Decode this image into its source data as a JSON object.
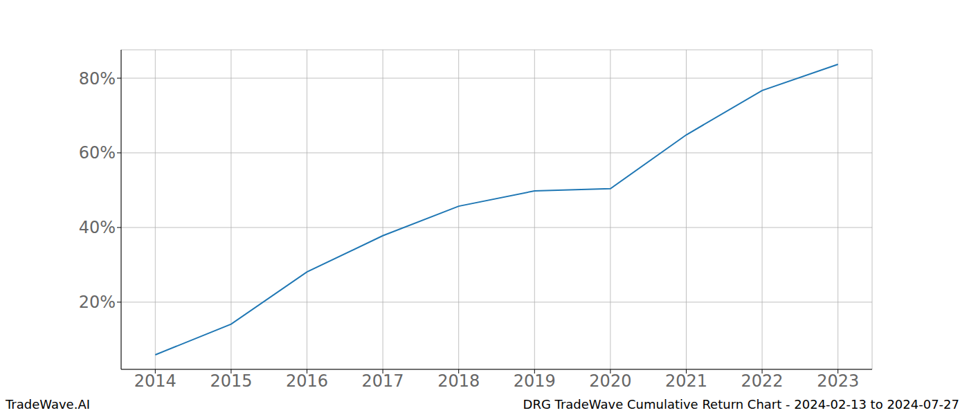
{
  "chart_data": {
    "type": "line",
    "title": "DRG TradeWave Cumulative Return Chart - 2024-02-13 to 2024-07-27",
    "source": "TradeWave.AI",
    "x": [
      2014,
      2015,
      2016,
      2017,
      2018,
      2019,
      2020,
      2021,
      2022,
      2023
    ],
    "values": [
      5.9,
      14.1,
      28.1,
      37.8,
      45.7,
      49.8,
      50.4,
      64.8,
      76.7,
      83.7
    ],
    "color": "#1f77b4",
    "xlim": [
      2013.55,
      2023.45
    ],
    "xticks": [
      2014,
      2015,
      2016,
      2017,
      2018,
      2019,
      2020,
      2021,
      2022,
      2023
    ],
    "ylim": [
      2.0,
      87.6
    ],
    "yticks": [
      {
        "value": 20,
        "label": "20%"
      },
      {
        "value": 40,
        "label": "40%"
      },
      {
        "value": 60,
        "label": "60%"
      },
      {
        "value": 80,
        "label": "80%"
      }
    ],
    "grid": true,
    "marker": "none",
    "line_style": "solid"
  }
}
